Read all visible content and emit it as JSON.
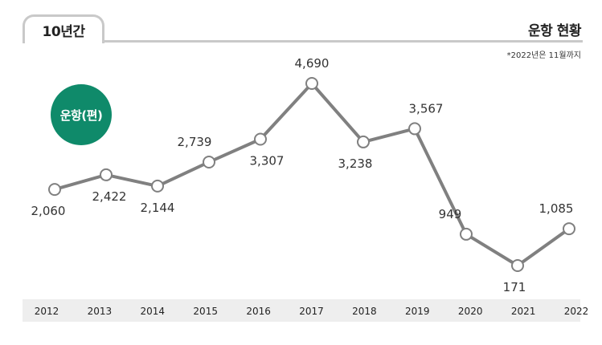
{
  "header": {
    "tab_label": "10년간",
    "title": "운항 현황",
    "note": "*2022년은 11월까지"
  },
  "badge": {
    "label": "운항(편)"
  },
  "colors": {
    "line": "#808080",
    "marker_fill": "#ffffff",
    "badge": "#0f8a6a",
    "axis_bar": "#eeeeee"
  },
  "chart_data": {
    "type": "line",
    "title": "운항 현황",
    "xlabel": "",
    "ylabel": "운항(편)",
    "grid": false,
    "ylim": [
      0,
      5000
    ],
    "categories": [
      "2012",
      "2013",
      "2014",
      "2015",
      "2016",
      "2017",
      "2018",
      "2019",
      "2020",
      "2021",
      "2022"
    ],
    "series": [
      {
        "values": [
          2060,
          2422,
          2144,
          2739,
          3307,
          4690,
          3238,
          3567,
          949,
          171,
          1085
        ],
        "labels": [
          "2,060",
          "2,422",
          "2,144",
          "2,739",
          "3,307",
          "4,690",
          "3,238",
          "3,567",
          "949",
          "171",
          "1,085"
        ]
      }
    ]
  }
}
